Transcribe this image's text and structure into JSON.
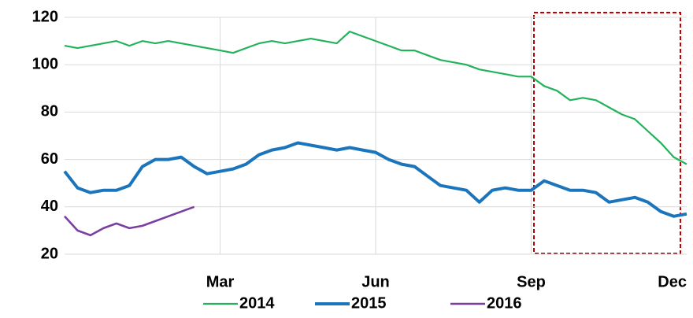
{
  "chart_data": {
    "type": "line",
    "categories": [
      null,
      null,
      null,
      null,
      null,
      null,
      null,
      null,
      null,
      null,
      null,
      null,
      "Mar",
      null,
      null,
      null,
      null,
      null,
      null,
      null,
      null,
      null,
      null,
      null,
      "Jun",
      null,
      null,
      null,
      null,
      null,
      null,
      null,
      null,
      null,
      null,
      null,
      "Sep",
      null,
      null,
      null,
      null,
      null,
      null,
      null,
      null,
      null,
      null,
      null,
      "Dec"
    ],
    "series": [
      {
        "name": "2014",
        "color": "#22b35a",
        "values": [
          108,
          107,
          108,
          109,
          110,
          108,
          110,
          109,
          110,
          109,
          108,
          107,
          106,
          105,
          107,
          109,
          110,
          109,
          110,
          111,
          110,
          109,
          114,
          112,
          110,
          108,
          106,
          106,
          104,
          102,
          101,
          100,
          98,
          97,
          96,
          95,
          95,
          91,
          89,
          85,
          86,
          85,
          82,
          79,
          77,
          72,
          67,
          61,
          58
        ]
      },
      {
        "name": "2015",
        "color": "#1b75bc",
        "values": [
          55,
          48,
          46,
          47,
          47,
          49,
          57,
          60,
          60,
          61,
          57,
          54,
          55,
          56,
          58,
          62,
          64,
          65,
          67,
          66,
          65,
          64,
          65,
          64,
          63,
          60,
          58,
          57,
          53,
          49,
          48,
          47,
          42,
          47,
          48,
          47,
          47,
          51,
          49,
          47,
          47,
          46,
          42,
          43,
          44,
          42,
          38,
          36,
          37
        ]
      },
      {
        "name": "2016",
        "color": "#7b3fa0",
        "values": [
          36,
          30,
          28,
          31,
          33,
          31,
          32,
          34,
          36,
          38,
          40,
          null,
          null,
          null,
          null,
          null,
          null,
          null,
          null,
          null,
          null,
          null,
          null,
          null,
          null,
          null,
          null,
          null,
          null,
          null,
          null,
          null,
          null,
          null,
          null,
          null,
          null,
          null,
          null,
          null,
          null,
          null,
          null,
          null,
          null,
          null,
          null,
          null,
          null
        ]
      }
    ],
    "ylim": [
      20,
      120
    ],
    "yticks": [
      20,
      40,
      60,
      80,
      100,
      120
    ],
    "grid": true,
    "legend": "bottom"
  }
}
